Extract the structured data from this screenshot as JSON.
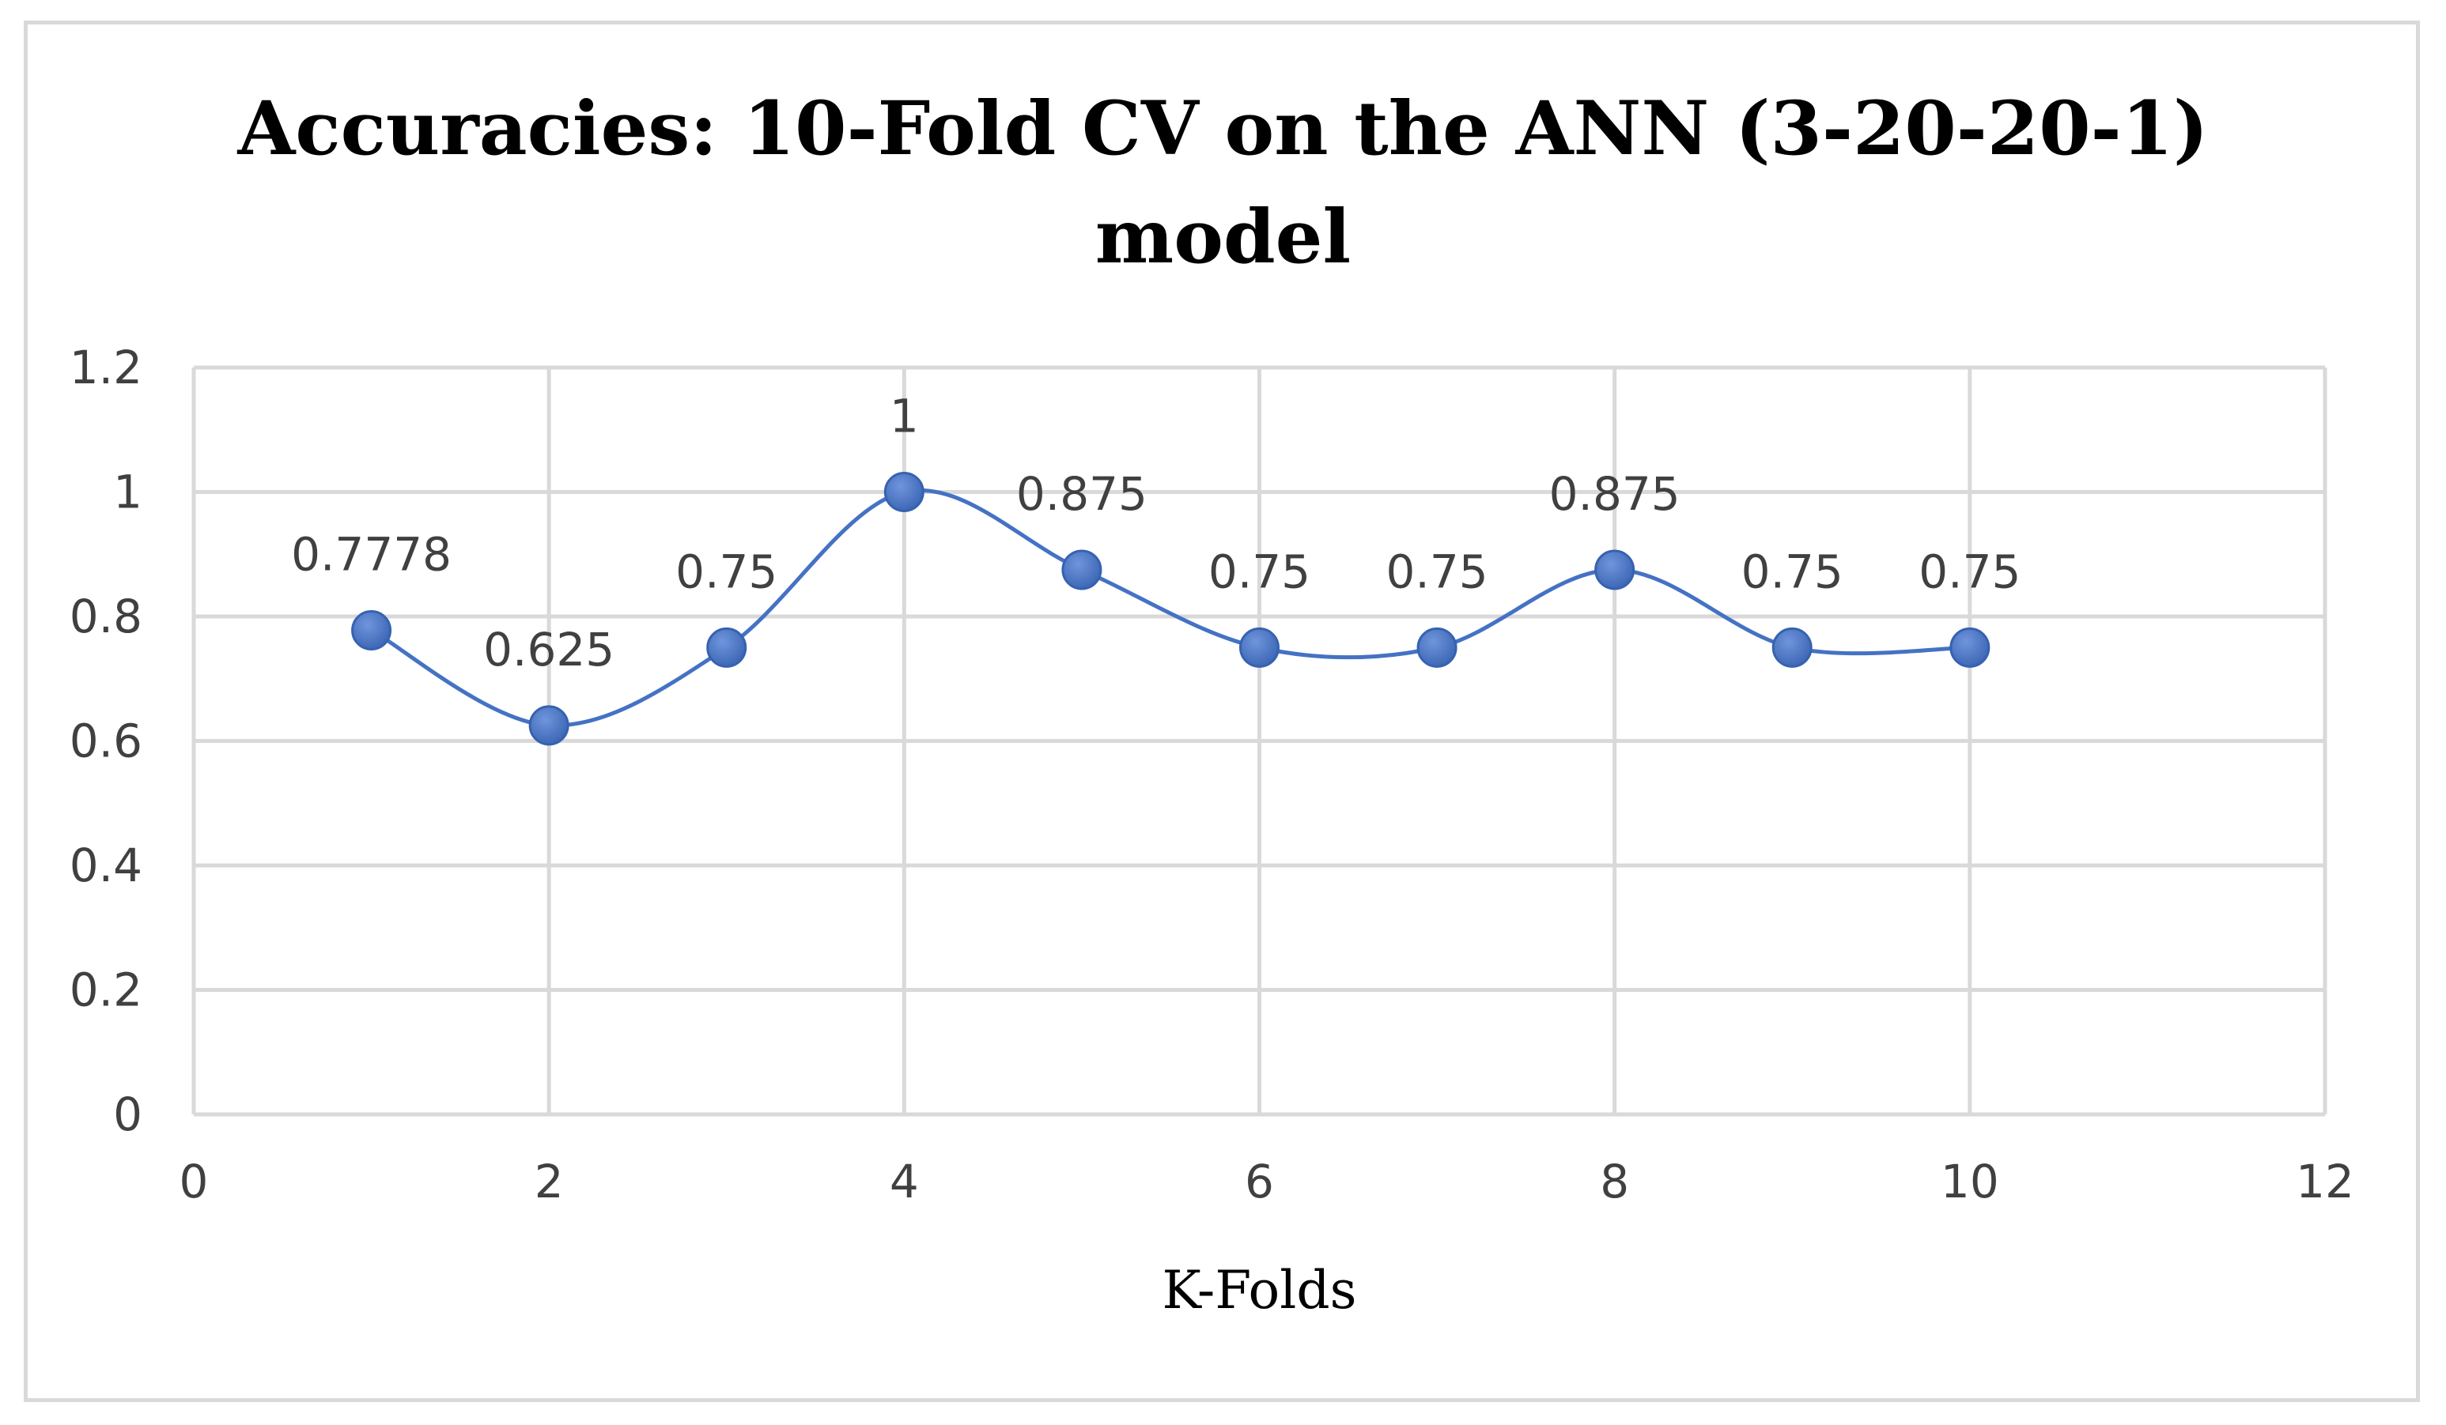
{
  "chart_data": {
    "type": "scatter",
    "title_lines": [
      "Accuracies: 10-Fold CV on the ANN (3-20-20-1)",
      "model"
    ],
    "xlabel": "K-Folds",
    "ylabel": "",
    "xlim": [
      0,
      12
    ],
    "ylim": [
      0,
      1.2
    ],
    "x_ticks": [
      "0",
      "2",
      "4",
      "6",
      "8",
      "10",
      "12"
    ],
    "y_ticks": [
      "0",
      "0.2",
      "0.4",
      "0.6",
      "0.8",
      "1",
      "1.2"
    ],
    "grid": true,
    "smoothed_line": true,
    "series": [
      {
        "x": [
          1,
          2,
          3,
          4,
          5,
          6,
          7,
          8,
          9,
          10
        ],
        "y": [
          0.7778,
          0.625,
          0.75,
          1,
          0.875,
          0.75,
          0.75,
          0.875,
          0.75,
          0.75
        ],
        "labels": [
          "0.7778",
          "0.625",
          "0.75",
          "1",
          "0.875",
          "0.75",
          "0.75",
          "0.875",
          "0.75",
          "0.75"
        ],
        "color": "#4472c4"
      }
    ],
    "colors": {
      "series": "#4472c4",
      "grid": "#d9d9d9",
      "tick_text": "#404040"
    }
  }
}
